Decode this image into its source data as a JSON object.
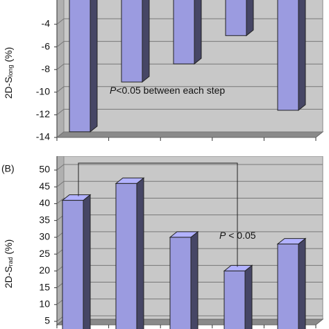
{
  "chart_data": [
    {
      "type": "bar",
      "ylabel": "2D-S",
      "ylabel_sub": "long",
      "ylabel_unit": " (%)",
      "annotation_italic": "P",
      "annotation": "<0.05 between each step",
      "values": [
        -13.5,
        -9.1,
        -7.5,
        -5,
        -11.6
      ],
      "color": "#9b9be0",
      "ylim": [
        -14,
        0
      ],
      "yticks": [
        -4,
        -6,
        -8,
        -10,
        -12,
        -14
      ],
      "grid": true
    },
    {
      "type": "bar",
      "panel": "(B)",
      "ylabel": "2D-S",
      "ylabel_sub": "rad",
      "ylabel_unit": " (%)",
      "annotation_italic": "P",
      "annotation": " < 0.05",
      "values": [
        41,
        46,
        30,
        20,
        28
      ],
      "color": "#9b9be0",
      "ylim": [
        0,
        50
      ],
      "yticks": [
        5,
        10,
        15,
        20,
        25,
        30,
        35,
        40,
        45,
        50
      ],
      "grid": true
    }
  ]
}
